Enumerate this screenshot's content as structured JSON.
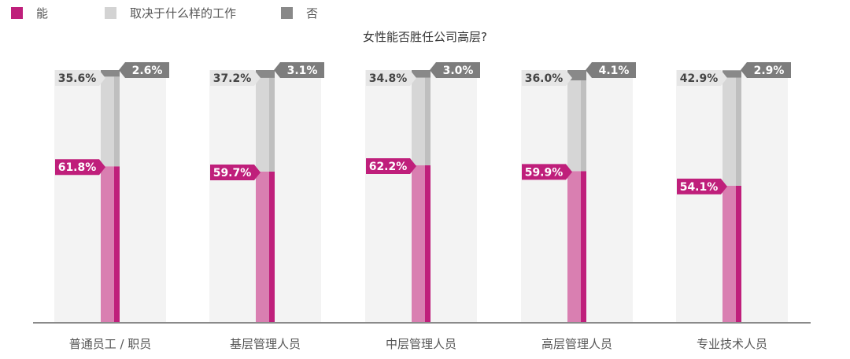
{
  "legend": [
    {
      "label": "能",
      "color": "#bf1f7b"
    },
    {
      "label": "取决于什么样的工作",
      "color": "#d3d3d3"
    },
    {
      "label": "否",
      "color": "#898989"
    }
  ],
  "chart_data": {
    "type": "bar",
    "stacked": true,
    "title": "女性能否胜任公司高层?",
    "categories": [
      "普通员工 / 职员",
      "基层管理人员",
      "中层管理人员",
      "高层管理人员",
      "专业技术人员"
    ],
    "series": [
      {
        "name": "能",
        "values": [
          61.8,
          59.7,
          62.2,
          59.9,
          54.1
        ],
        "labels": [
          "61.8%",
          "59.7%",
          "62.2%",
          "59.9%",
          "54.1%"
        ],
        "color": "#bf1f7b"
      },
      {
        "name": "取决于什么样的工作",
        "values": [
          35.6,
          37.2,
          34.8,
          36.0,
          42.9
        ],
        "labels": [
          "35.6%",
          "37.2%",
          "34.8%",
          "36.0%",
          "42.9%"
        ],
        "color": "#d3d3d3"
      },
      {
        "name": "否",
        "values": [
          2.6,
          3.1,
          3.0,
          4.1,
          2.9
        ],
        "labels": [
          "2.6%",
          "3.1%",
          "3.0%",
          "4.1%",
          "2.9%"
        ],
        "color": "#898989"
      }
    ],
    "ylim": [
      0,
      100
    ],
    "grid": false,
    "legend_position": "top-left"
  }
}
